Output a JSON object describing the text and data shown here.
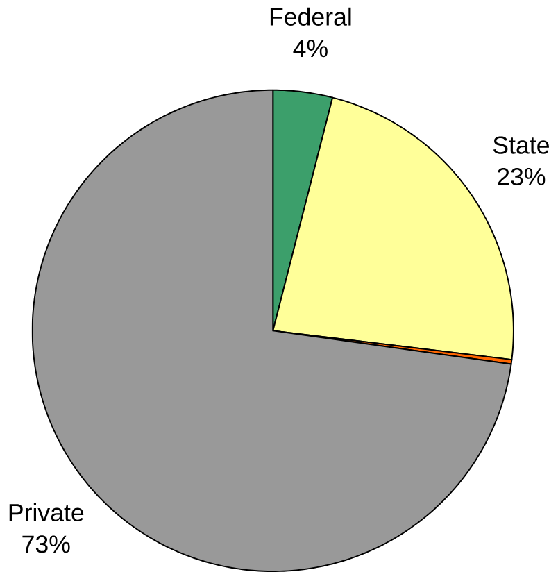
{
  "chart_data": {
    "type": "pie",
    "categories": [
      "Federal",
      "State",
      null,
      "Private"
    ],
    "values": [
      4,
      23,
      0.3,
      73
    ],
    "value_labels": [
      "4%",
      "23%",
      null,
      "73%"
    ],
    "colors": [
      "#3c9f6b",
      "#ffff99",
      "#ff6600",
      "#999999"
    ]
  }
}
